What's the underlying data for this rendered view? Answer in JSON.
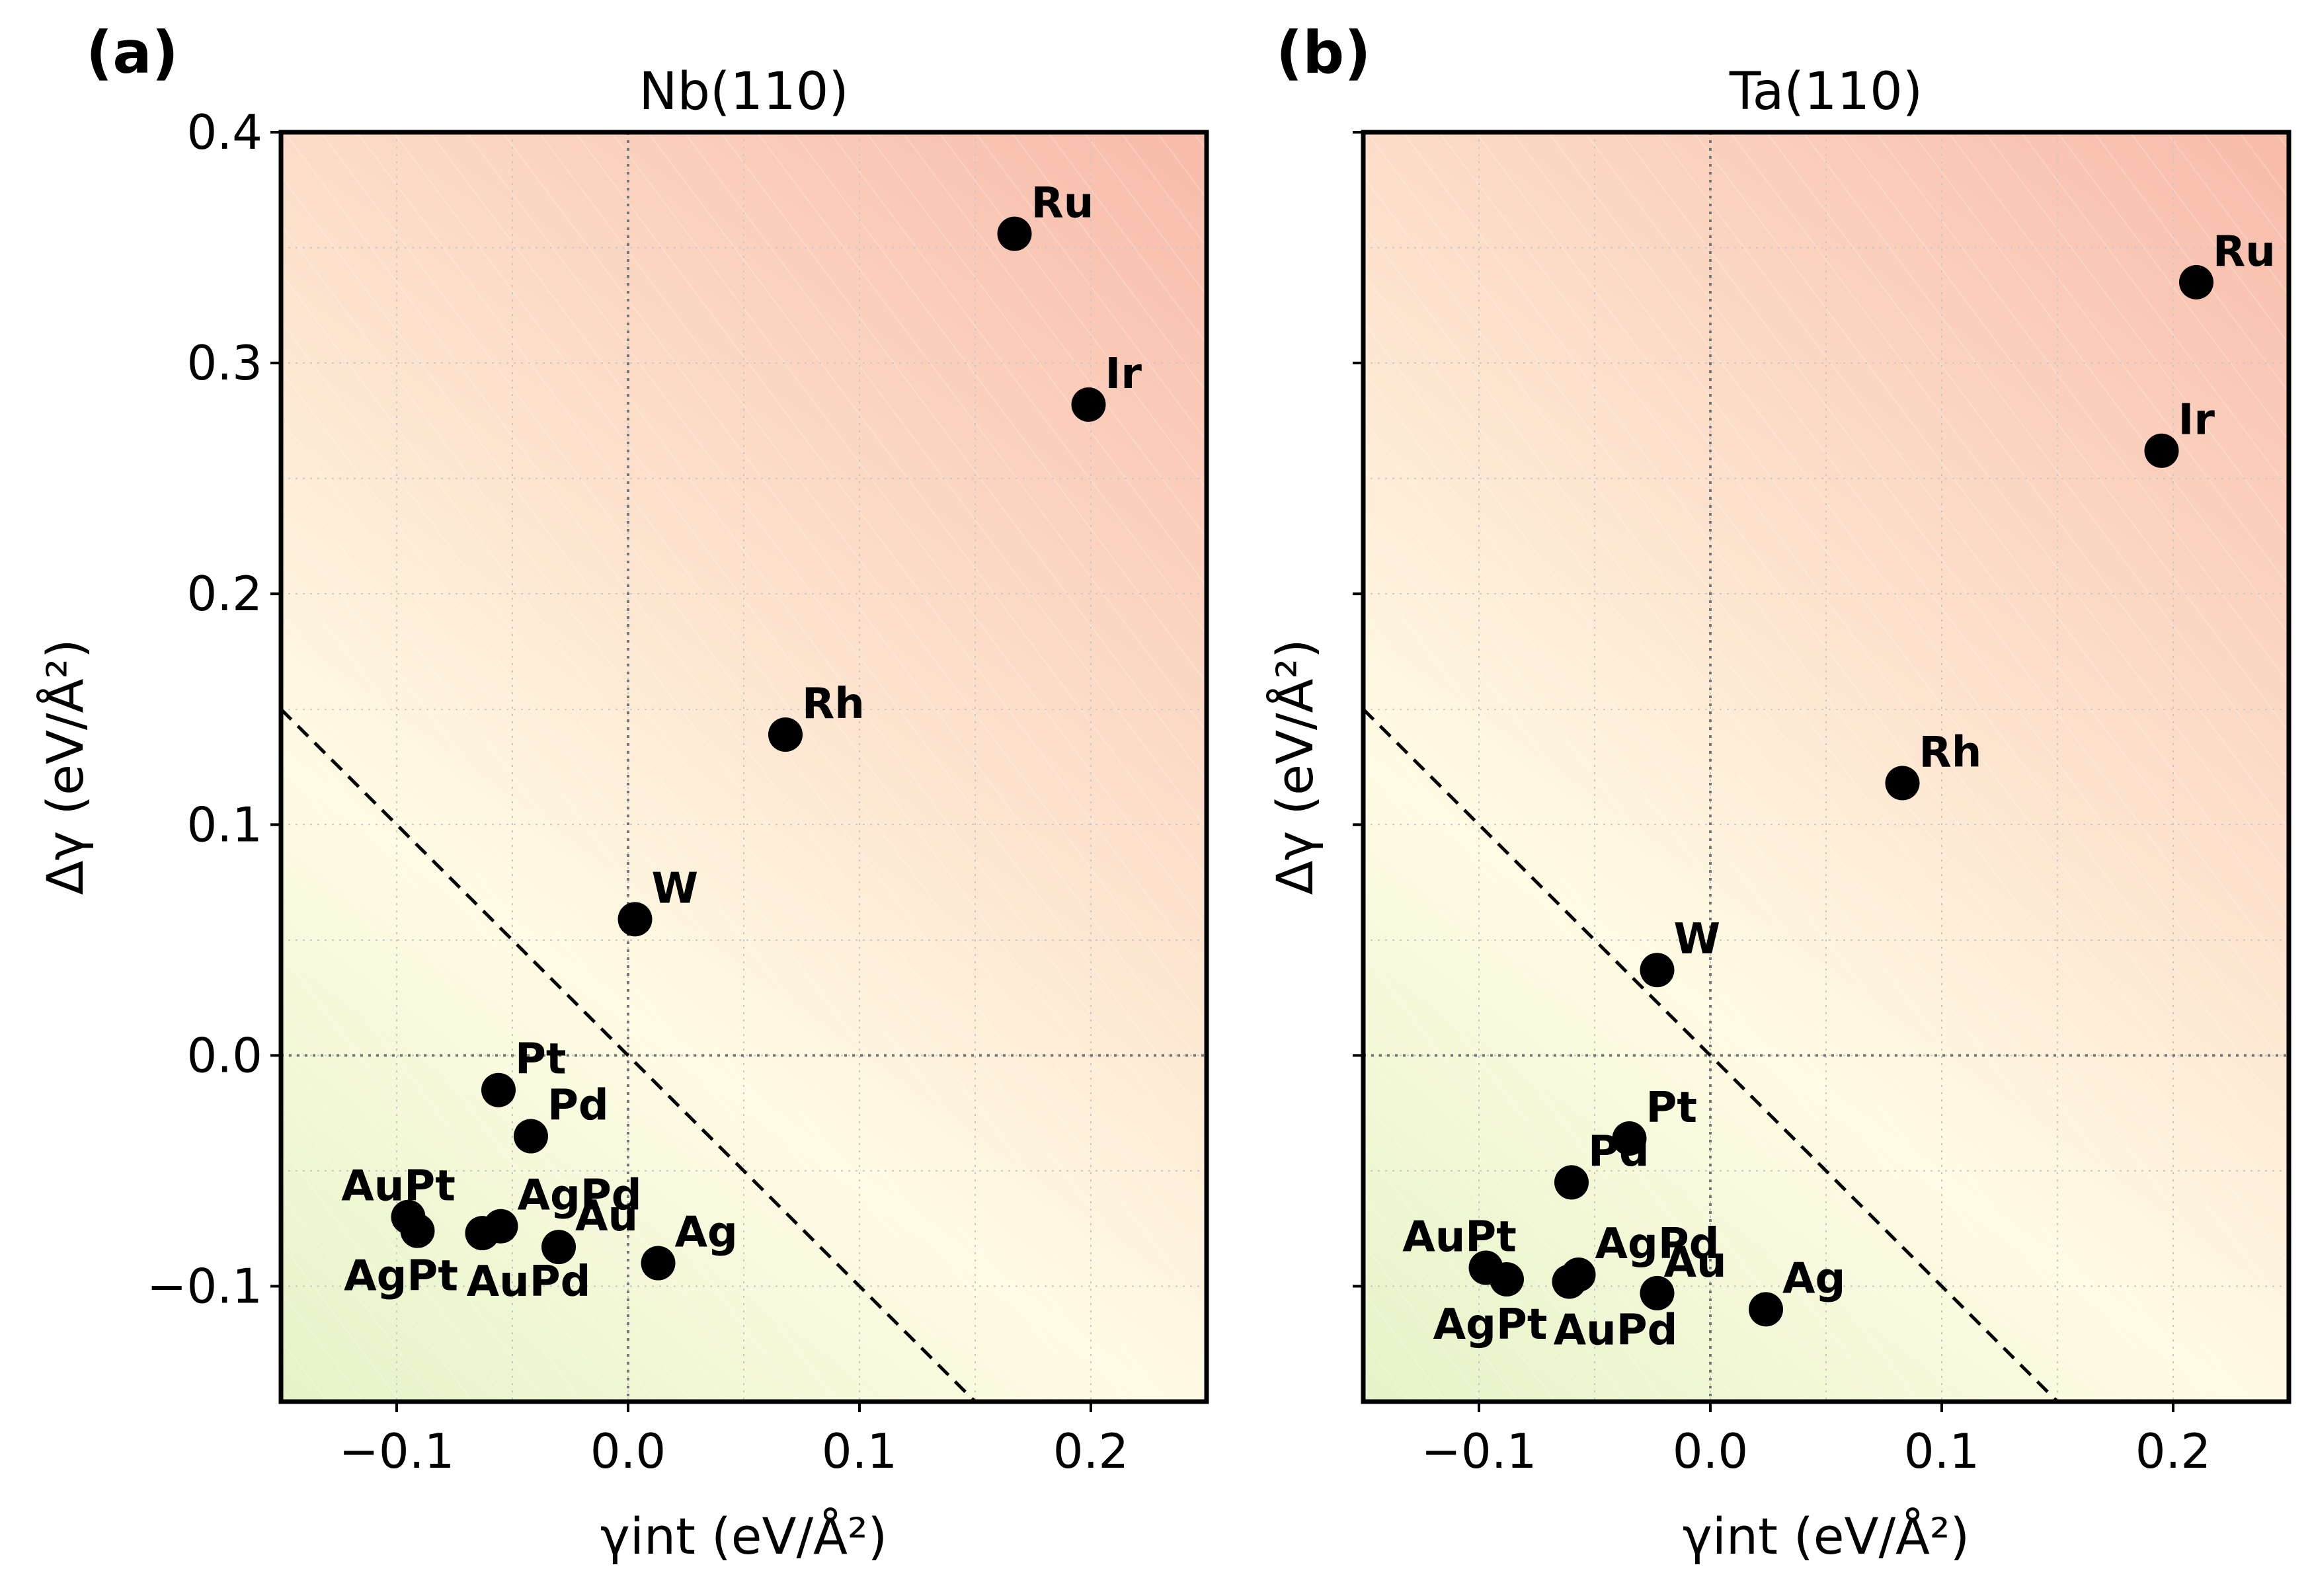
{
  "chart_data": [
    {
      "type": "scatter",
      "panel": "(a)",
      "title": "Nb(110)",
      "xlabel": "γint (eV/Å²)",
      "ylabel": "Δγ (eV/Å²)",
      "xlim": [
        -0.15,
        0.25
      ],
      "ylim": [
        -0.15,
        0.4
      ],
      "xticks": [
        "−0.1",
        "0.0",
        "0.1",
        "0.2"
      ],
      "yticks": [
        "−0.1",
        "0.0",
        "0.1",
        "0.2",
        "0.3",
        "0.4"
      ],
      "show_yticklabels": true,
      "grid": true,
      "reference_line": "Δγ = −γint (dashed)",
      "points": [
        {
          "label": "Ru",
          "x": 0.167,
          "y": 0.356
        },
        {
          "label": "Ir",
          "x": 0.199,
          "y": 0.282
        },
        {
          "label": "Rh",
          "x": 0.068,
          "y": 0.139
        },
        {
          "label": "W",
          "x": 0.003,
          "y": 0.059
        },
        {
          "label": "Pt",
          "x": -0.056,
          "y": -0.015
        },
        {
          "label": "Pd",
          "x": -0.042,
          "y": -0.035
        },
        {
          "label": "AuPt",
          "x": -0.095,
          "y": -0.07
        },
        {
          "label": "AgPt",
          "x": -0.091,
          "y": -0.076
        },
        {
          "label": "AuPd",
          "x": -0.063,
          "y": -0.077
        },
        {
          "label": "AgPd",
          "x": -0.055,
          "y": -0.074
        },
        {
          "label": "Au",
          "x": -0.03,
          "y": -0.083
        },
        {
          "label": "Ag",
          "x": 0.013,
          "y": -0.09
        }
      ]
    },
    {
      "type": "scatter",
      "panel": "(b)",
      "title": "Ta(110)",
      "xlabel": "γint (eV/Å²)",
      "ylabel": "Δγ (eV/Å²)",
      "xlim": [
        -0.15,
        0.25
      ],
      "ylim": [
        -0.15,
        0.4
      ],
      "xticks": [
        "−0.1",
        "0.0",
        "0.1",
        "0.2"
      ],
      "yticks": [
        "−0.1",
        "0.0",
        "0.1",
        "0.2",
        "0.3",
        "0.4"
      ],
      "show_yticklabels": false,
      "grid": true,
      "reference_line": "Δγ = −γint (dashed)",
      "points": [
        {
          "label": "Ru",
          "x": 0.21,
          "y": 0.335
        },
        {
          "label": "Ir",
          "x": 0.195,
          "y": 0.262
        },
        {
          "label": "Rh",
          "x": 0.083,
          "y": 0.118
        },
        {
          "label": "W",
          "x": -0.023,
          "y": 0.037
        },
        {
          "label": "Pt",
          "x": -0.035,
          "y": -0.036
        },
        {
          "label": "Pd",
          "x": -0.06,
          "y": -0.055
        },
        {
          "label": "AuPt",
          "x": -0.097,
          "y": -0.092
        },
        {
          "label": "AgPt",
          "x": -0.088,
          "y": -0.097
        },
        {
          "label": "AuPd",
          "x": -0.061,
          "y": -0.098
        },
        {
          "label": "AgPd",
          "x": -0.057,
          "y": -0.095
        },
        {
          "label": "Au",
          "x": -0.023,
          "y": -0.103
        },
        {
          "label": "Ag",
          "x": 0.024,
          "y": -0.11
        }
      ]
    }
  ],
  "colors": {
    "low": "#e4f3c6",
    "mid": "#fffbe4",
    "high": "#f8bba9",
    "marker": "#000000",
    "dashed_line": "#000000",
    "zero_line": "#777777",
    "grid": "#c8c8c8"
  }
}
